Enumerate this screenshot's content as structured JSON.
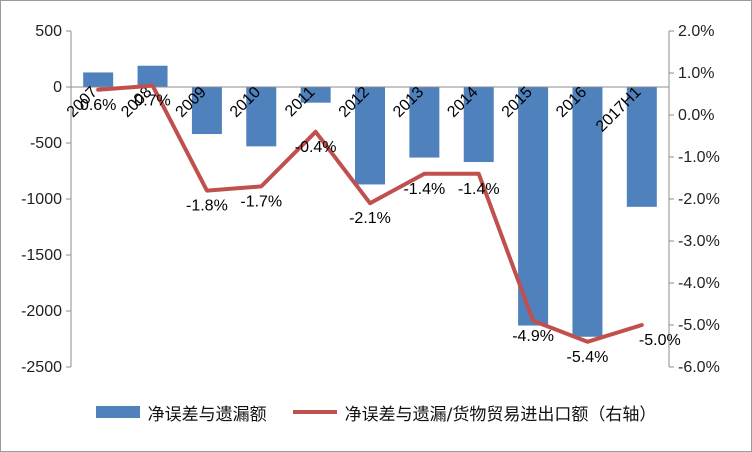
{
  "chart_data": {
    "type": "bar",
    "categories": [
      "2007",
      "2008",
      "2009",
      "2010",
      "2011",
      "2012",
      "2013",
      "2014",
      "2015",
      "2016",
      "2017H1"
    ],
    "series": [
      {
        "name": "净误差与遗漏额",
        "type": "bar",
        "axis": "left",
        "color": "#4f81bd",
        "values": [
          130,
          190,
          -420,
          -530,
          -140,
          -870,
          -630,
          -670,
          -2130,
          -2230,
          -1070
        ]
      },
      {
        "name": "净误差与遗漏/货物贸易进出口额（右轴）",
        "type": "line",
        "axis": "right",
        "color": "#c0504d",
        "values": [
          0.6,
          0.7,
          -1.8,
          -1.7,
          -0.4,
          -2.1,
          -1.4,
          -1.4,
          -4.9,
          -5.4,
          -5.0
        ],
        "labels": [
          "0.6%",
          "0.7%",
          "-1.8%",
          "-1.7%",
          "-0.4%",
          "-2.1%",
          "-1.4%",
          "-1.4%",
          "-4.9%",
          "-5.4%",
          "-5.0%"
        ]
      }
    ],
    "y_left": {
      "ylim": [
        -2500,
        500
      ],
      "ticks": [
        500,
        0,
        -500,
        -1000,
        -1500,
        -2000,
        -2500
      ]
    },
    "y_right": {
      "ylim": [
        -6.0,
        2.0
      ],
      "ticks": [
        "2.0%",
        "1.0%",
        "0.0%",
        "-1.0%",
        "-2.0%",
        "-3.0%",
        "-4.0%",
        "-5.0%",
        "-6.0%"
      ]
    },
    "title": "",
    "xlabel": "",
    "ylabel": "",
    "grid": false,
    "legend_position": "bottom"
  }
}
